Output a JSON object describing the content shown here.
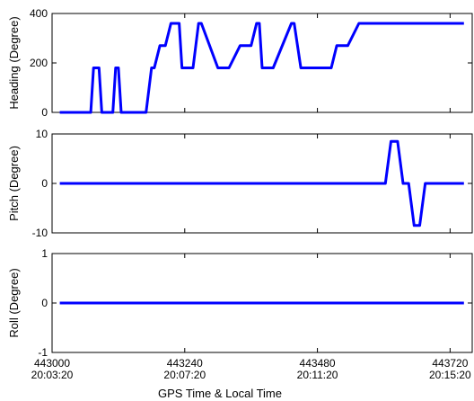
{
  "colors": {
    "series": "#0000ff",
    "axis": "#000000",
    "background": "#ffffff"
  },
  "x_axis": {
    "label": "GPS Time & Local Time",
    "ticks": [
      {
        "value": 443000,
        "gps": "443000",
        "local": "20:03:20"
      },
      {
        "value": 443240,
        "gps": "443240",
        "local": "20:07:20"
      },
      {
        "value": 443480,
        "gps": "443480",
        "local": "20:11:20"
      },
      {
        "value": 443720,
        "gps": "443720",
        "local": "20:15:20"
      }
    ]
  },
  "chart_data": [
    {
      "type": "line",
      "ylabel": "Heading (Degree)",
      "xlim": [
        443000,
        443760
      ],
      "ylim": [
        0,
        400
      ],
      "yticks": [
        0,
        200,
        400
      ],
      "grid": false,
      "series": [
        {
          "x": [
            443014,
            443070,
            443075,
            443085,
            443090,
            443095,
            443100,
            443110,
            443115,
            443120,
            443125,
            443135,
            443140,
            443165,
            443170,
            443180,
            443185,
            443195,
            443200,
            443205,
            443215,
            443230,
            443235,
            443245,
            443250,
            443255,
            443265,
            443270,
            443300,
            443305,
            443315,
            443320,
            443340,
            443345,
            443355,
            443360,
            443370,
            443375,
            443380,
            443385,
            443395,
            443400,
            443433,
            443438,
            443450,
            443455,
            443475,
            443480,
            443490,
            443495,
            443500,
            443505,
            443515,
            443520,
            443530,
            443535,
            443555,
            443560,
            443565,
            443570,
            443585,
            443590,
            443745
          ],
          "y": [
            0,
            0,
            180,
            180,
            0,
            0,
            0,
            0,
            180,
            180,
            0,
            0,
            0,
            0,
            0,
            180,
            180,
            270,
            270,
            270,
            360,
            360,
            180,
            180,
            180,
            180,
            360,
            360,
            180,
            180,
            180,
            180,
            270,
            270,
            270,
            270,
            360,
            360,
            180,
            180,
            180,
            180,
            360,
            360,
            180,
            180,
            180,
            180,
            180,
            180,
            180,
            180,
            270,
            270,
            270,
            270,
            360,
            360,
            360,
            360,
            360,
            360,
            360
          ]
        }
      ]
    },
    {
      "type": "line",
      "ylabel": "Pitch (Degree)",
      "xlim": [
        443000,
        443760
      ],
      "ylim": [
        -10,
        10
      ],
      "yticks": [
        -10,
        0,
        10
      ],
      "grid": false,
      "series": [
        {
          "x": [
            443014,
            443603,
            443613,
            443625,
            443635,
            443645,
            443655,
            443665,
            443675,
            443680,
            443745
          ],
          "y": [
            0,
            0,
            8.5,
            8.5,
            0,
            0,
            -8.5,
            -8.5,
            0,
            0,
            0
          ]
        }
      ]
    },
    {
      "type": "line",
      "ylabel": "Roll (Degree)",
      "xlim": [
        443000,
        443760
      ],
      "ylim": [
        -1,
        1
      ],
      "yticks": [
        -1,
        0,
        1
      ],
      "grid": false,
      "series": [
        {
          "x": [
            443014,
            443745
          ],
          "y": [
            0,
            0
          ]
        }
      ]
    }
  ]
}
